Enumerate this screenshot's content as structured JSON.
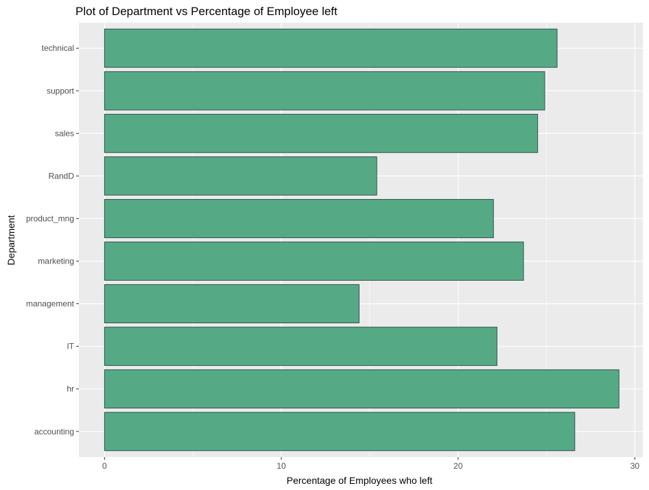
{
  "chart_data": {
    "type": "bar",
    "orientation": "horizontal",
    "title": "Plot of Department vs Percentage of Employee left",
    "xlabel": "Percentage of Employees who left",
    "ylabel": "Department",
    "categories": [
      "accounting",
      "hr",
      "IT",
      "management",
      "marketing",
      "product_mng",
      "RandD",
      "sales",
      "support",
      "technical"
    ],
    "values": [
      26.6,
      29.1,
      22.2,
      14.4,
      23.7,
      22.0,
      15.4,
      24.5,
      24.9,
      25.6
    ],
    "xlim": [
      -1.45,
      30.45
    ],
    "xticks": [
      0,
      10,
      20,
      30
    ],
    "xtick_labels": [
      "0",
      "10",
      "20",
      "30"
    ],
    "grid": true,
    "colors": {
      "panel": "#ebebeb",
      "grid": "#ffffff",
      "bar_fill": "#55aa85",
      "bar_stroke": "#2f4f4f"
    }
  }
}
